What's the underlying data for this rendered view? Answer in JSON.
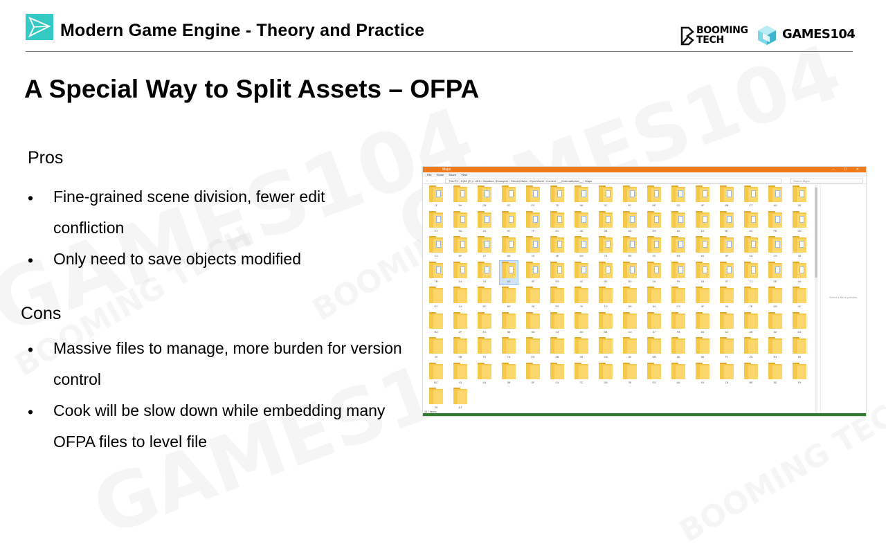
{
  "header": {
    "course_title": "Modern Game Engine - Theory and Practice",
    "booming_line1": "BOOMING",
    "booming_line2": "TECH",
    "games_text": "GAMES104"
  },
  "watermark": {
    "brand": "GAMES104",
    "sub": "BOOMING TECH"
  },
  "slide": {
    "title": "A Special Way to Split Assets – OFPA",
    "pros_heading": "Pros",
    "pros": [
      "Fine-grained scene division, fewer edit",
      "confliction",
      "Only need to save objects modified"
    ],
    "cons_heading": "Cons",
    "cons": [
      "Massive files to manage, more burden for version",
      "control",
      "Cook will be slow down while embedding many",
      "OFPA files to level file"
    ],
    "bullet_char": "•"
  },
  "explorer": {
    "window_title": "Maps",
    "window_buttons": "– ☐ ✕",
    "menu": [
      "File",
      "Home",
      "Share",
      "View"
    ],
    "nav": "← → ↑",
    "path": "This PC › DISK (E:) › UE5 › Sandbox › Examples › RenderVision › OpenWorld › Content › __ExternalActors__ › Maps",
    "search_placeholder": "Search Maps",
    "preview_text": "Select a file to preview.",
    "status_text": "247 items",
    "folder_labels": [
      "1F",
      "5A",
      "2B",
      "0C",
      "E4",
      "7D",
      "9A",
      "3C",
      "B1",
      "6E",
      "D2",
      "4F",
      "8B",
      "C7",
      "A0",
      "2E",
      "F3",
      "5D",
      "01",
      "9C",
      "7F",
      "E0",
      "3A",
      "4B",
      "6D",
      "D9",
      "82",
      "1A",
      "B7",
      "5C",
      "FE",
      "0D",
      "C3",
      "8F",
      "27",
      "A6",
      "19",
      "4E",
      "D0",
      "73",
      "B5",
      "2C",
      "E8",
      "61",
      "9F",
      "0A",
      "C5",
      "38",
      "7B",
      "D4",
      "16",
      "A3",
      "5F",
      "E9",
      "42",
      "8D",
      "B0",
      "2A",
      "F6",
      "63",
      "97",
      "C1",
      "0E",
      "4A",
      "D7",
      "31",
      "8C",
      "B9",
      "26",
      "E5",
      "70",
      "1D",
      "A8",
      "54",
      "C9",
      "3F",
      "06",
      "7E",
      "D5",
      "4C",
      "B3",
      "2F",
      "E1",
      "68",
      "9D",
      "13",
      "A5",
      "5B",
      "C0",
      "37",
      "F8",
      "84",
      "1C",
      "AE",
      "62",
      "D1",
      "49",
      "0B",
      "F2",
      "7A",
      "E6",
      "3B",
      "95",
      "C8",
      "50",
      "AB",
      "1E",
      "86",
      "F1",
      "2D",
      "B4",
      "69",
      "DC",
      "43",
      "A1",
      "58",
      "0F",
      "C4",
      "7C",
      "D8",
      "35",
      "E3",
      "6A",
      "91",
      "1B",
      "BE",
      "52",
      "F9",
      "28",
      "A7"
    ],
    "selected_index": 51
  }
}
